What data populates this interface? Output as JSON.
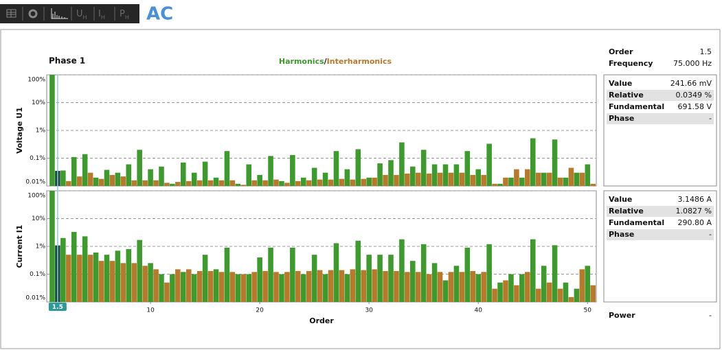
{
  "toolbar": {
    "tabs": [
      {
        "label": "U",
        "sub": "H"
      },
      {
        "label": "I",
        "sub": "H"
      },
      {
        "label": "P",
        "sub": "H"
      }
    ],
    "mode": "AC"
  },
  "phase": "Phase 1",
  "legend_separator": "/",
  "cursor": {
    "value": 1.5,
    "label": "1.5",
    "color": "#1b4a3a"
  },
  "chart_data": [
    {
      "type": "bar",
      "log_scale": true,
      "ylabel": "Voltage U1",
      "ylim": [
        0.01,
        100
      ],
      "yticks": [
        {
          "value": 100,
          "label": "100%"
        },
        {
          "value": 10,
          "label": "10%"
        },
        {
          "value": 1,
          "label": "1%"
        },
        {
          "value": 0.1,
          "label": "0.1%"
        },
        {
          "value": 0.01,
          "label": "0.01%"
        }
      ],
      "xlim": [
        0.5,
        50.8
      ],
      "grid": true,
      "series": [
        {
          "name": "Harmonics",
          "color": "#3d9a2c",
          "x": [
            1,
            2,
            3,
            4,
            5,
            6,
            7,
            8,
            9,
            10,
            11,
            12,
            13,
            14,
            15,
            16,
            17,
            18,
            19,
            20,
            21,
            22,
            23,
            24,
            25,
            26,
            27,
            28,
            29,
            30,
            31,
            32,
            33,
            34,
            35,
            36,
            37,
            38,
            39,
            40,
            41,
            42,
            43,
            44,
            45,
            46,
            47,
            48,
            49,
            50
          ],
          "values": [
            100,
            0.036,
            0.11,
            0.14,
            0.02,
            0.038,
            0.03,
            0.06,
            0.2,
            0.04,
            0.05,
            0.012,
            0.07,
            0.03,
            0.075,
            0.02,
            0.18,
            0.012,
            0.06,
            0.025,
            0.12,
            0.015,
            0.13,
            0.02,
            0.045,
            0.03,
            0.18,
            0.04,
            0.21,
            0.02,
            0.065,
            0.085,
            0.37,
            0.05,
            0.2,
            0.06,
            0.06,
            0.06,
            0.18,
            0.04,
            0.33,
            0.012,
            0.02,
            0.02,
            0.52,
            0.03,
            0.47,
            0.02,
            0.03,
            0.06
          ]
        },
        {
          "name": "Interharmonics",
          "color": "#b9792a",
          "x": [
            1.5,
            2.5,
            3.5,
            4.5,
            5.5,
            6.5,
            7.5,
            8.5,
            9.5,
            10.5,
            11.5,
            12.5,
            13.5,
            14.5,
            15.5,
            16.5,
            17.5,
            18.5,
            19.5,
            20.5,
            21.5,
            22.5,
            23.5,
            24.5,
            25.5,
            26.5,
            27.5,
            28.5,
            29.5,
            30.5,
            31.5,
            32.5,
            33.5,
            34.5,
            35.5,
            36.5,
            37.5,
            38.5,
            39.5,
            40.5,
            41.5,
            42.5,
            43.5,
            44.5,
            45.5,
            46.5,
            47.5,
            48.5,
            49.5,
            50.5
          ],
          "values": [
            0.0349,
            0.015,
            0.022,
            0.03,
            0.018,
            0.025,
            0.022,
            0.016,
            0.016,
            0.016,
            0.013,
            0.014,
            0.015,
            0.016,
            0.016,
            0.016,
            0.016,
            0.011,
            0.016,
            0.016,
            0.017,
            0.013,
            0.015,
            0.016,
            0.017,
            0.017,
            0.018,
            0.017,
            0.018,
            0.02,
            0.025,
            0.025,
            0.028,
            0.03,
            0.028,
            0.03,
            0.03,
            0.03,
            0.025,
            0.025,
            0.012,
            0.02,
            0.04,
            0.04,
            0.03,
            0.03,
            0.02,
            0.045,
            0.03,
            0.012
          ]
        }
      ]
    },
    {
      "type": "bar",
      "log_scale": true,
      "ylabel": "Current I1",
      "xlabel": "Order",
      "ylim": [
        0.01,
        100
      ],
      "yticks": [
        {
          "value": 100,
          "label": "100%"
        },
        {
          "value": 10,
          "label": "10%"
        },
        {
          "value": 1,
          "label": "1%"
        },
        {
          "value": 0.1,
          "label": "0.1%"
        },
        {
          "value": 0.01,
          "label": "0.01%"
        }
      ],
      "xlim": [
        0.5,
        50.8
      ],
      "xticks": [
        10,
        20,
        30,
        40,
        50
      ],
      "grid": true,
      "series": [
        {
          "color": "#3d9a2c",
          "x": [
            1,
            2,
            3,
            4,
            5,
            6,
            7,
            8,
            9,
            10,
            11,
            12,
            13,
            14,
            15,
            16,
            17,
            18,
            19,
            20,
            21,
            22,
            23,
            24,
            25,
            26,
            27,
            28,
            29,
            30,
            31,
            32,
            33,
            34,
            35,
            36,
            37,
            38,
            39,
            40,
            41,
            42,
            43,
            44,
            45,
            46,
            47,
            48,
            49,
            50
          ],
          "values": [
            100,
            2,
            3.3,
            2.3,
            0.6,
            0.5,
            0.7,
            0.8,
            1.7,
            0.25,
            0.1,
            0.1,
            0.12,
            0.1,
            0.5,
            0.15,
            0.9,
            0.1,
            0.1,
            0.4,
            0.9,
            0.1,
            0.9,
            0.1,
            0.5,
            0.1,
            1.3,
            0.1,
            1.6,
            0.5,
            0.5,
            0.5,
            1.8,
            0.3,
            1.2,
            0.25,
            0.06,
            0.2,
            0.9,
            0.1,
            1.2,
            0.05,
            0.1,
            0.1,
            1.8,
            0.2,
            1.1,
            0.05,
            0.03,
            0.2
          ]
        },
        {
          "color": "#b9792a",
          "x": [
            1.5,
            2.5,
            3.5,
            4.5,
            5.5,
            6.5,
            7.5,
            8.5,
            9.5,
            10.5,
            11.5,
            12.5,
            13.5,
            14.5,
            15.5,
            16.5,
            17.5,
            18.5,
            19.5,
            20.5,
            21.5,
            22.5,
            23.5,
            24.5,
            25.5,
            26.5,
            27.5,
            28.5,
            29.5,
            30.5,
            31.5,
            32.5,
            33.5,
            34.5,
            35.5,
            36.5,
            37.5,
            38.5,
            39.5,
            40.5,
            41.5,
            42.5,
            43.5,
            44.5,
            45.5,
            46.5,
            47.5,
            48.5,
            49.5,
            50.5
          ],
          "values": [
            1.0827,
            0.5,
            0.5,
            0.5,
            0.3,
            0.3,
            0.25,
            0.25,
            0.2,
            0.15,
            0.05,
            0.15,
            0.15,
            0.13,
            0.13,
            0.12,
            0.12,
            0.1,
            0.12,
            0.13,
            0.12,
            0.12,
            0.13,
            0.13,
            0.14,
            0.14,
            0.14,
            0.15,
            0.14,
            0.15,
            0.13,
            0.13,
            0.12,
            0.12,
            0.1,
            0.12,
            0.12,
            0.12,
            0.13,
            0.12,
            0.03,
            0.06,
            0.04,
            0.12,
            0.03,
            0.05,
            0.03,
            0.015,
            0.15,
            0.04
          ]
        }
      ]
    }
  ],
  "info": {
    "rows": [
      [
        "Order",
        "1.5"
      ],
      [
        "Frequency",
        "75.000 Hz"
      ]
    ]
  },
  "panels": [
    {
      "rows": [
        [
          "Value",
          "241.66 mV"
        ],
        [
          "Relative",
          "0.0349 %"
        ],
        [
          "Fundamental",
          "691.58 V"
        ],
        [
          "Phase",
          "-"
        ]
      ]
    },
    {
      "rows": [
        [
          "Value",
          "3.1486 A"
        ],
        [
          "Relative",
          "1.0827 %"
        ],
        [
          "Fundamental",
          "290.80 A"
        ],
        [
          "Phase",
          "-"
        ]
      ]
    }
  ],
  "power": [
    "Power",
    "-"
  ]
}
